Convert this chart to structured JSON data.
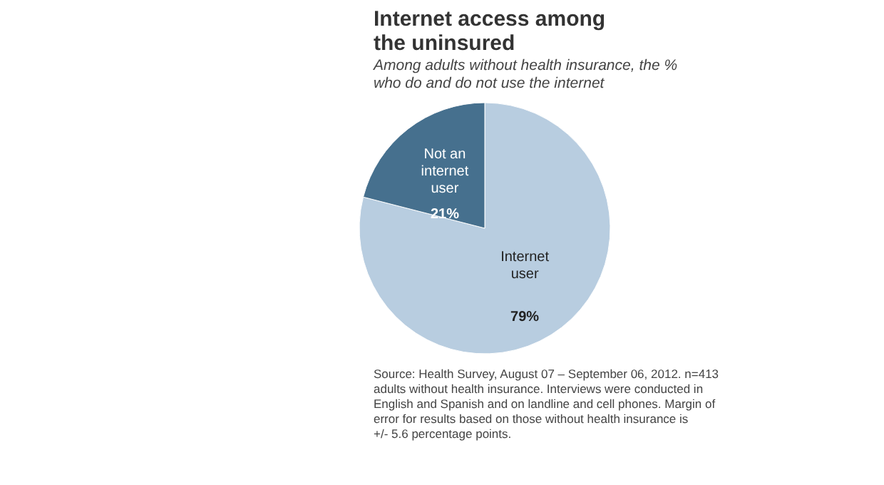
{
  "chart_data": {
    "type": "pie",
    "title": "Internet access among the uninsured",
    "subtitle": "Among adults without health insurance, the % who do and do not use the internet",
    "categories": [
      "Internet user",
      "Not an internet user"
    ],
    "values": [
      79,
      21
    ],
    "colors": [
      "#b8cde0",
      "#46708e"
    ],
    "value_labels": [
      "79%",
      "21%"
    ],
    "legend": false,
    "annotations": [
      "Source: Health Survey, August 07 – September 06, 2012. n=413 adults without health insurance. Interviews were conducted in English and Spanish and on landline and cell phones. Margin of error for results based on those without health insurance is +/- 5.6 percentage points."
    ]
  }
}
